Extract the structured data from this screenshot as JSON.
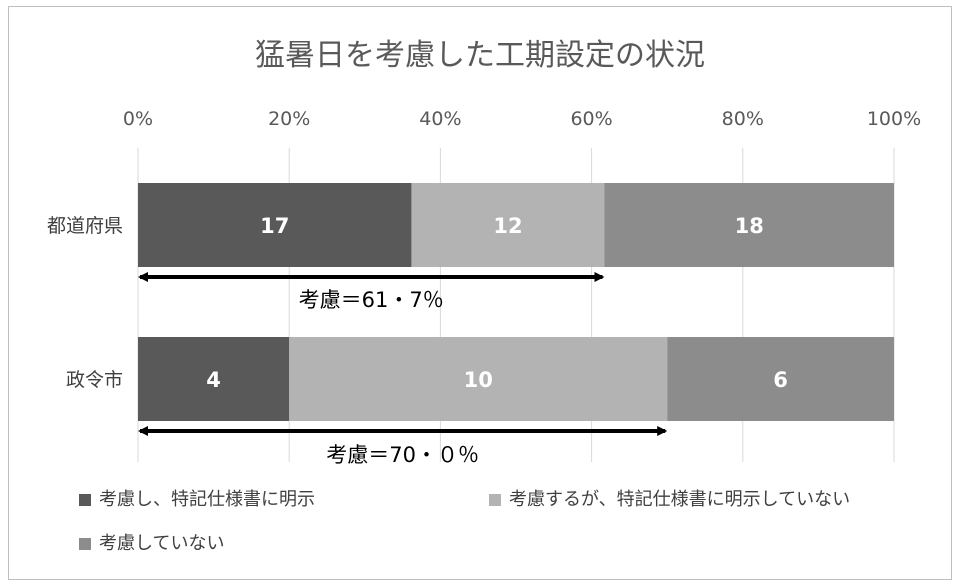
{
  "chart_data": {
    "type": "bar",
    "orientation": "horizontal",
    "stacked": "percent",
    "title": "猛暑日を考慮した工期設定の状況",
    "categories": [
      "都道府県",
      "政令市"
    ],
    "series": [
      {
        "name": "考慮し、特記仕様書に明示",
        "values": [
          17,
          4
        ],
        "color": "#595959"
      },
      {
        "name": "考慮するが、特記仕様書に明示していない",
        "values": [
          12,
          10
        ],
        "color": "#b3b3b3"
      },
      {
        "name": "考慮していない",
        "values": [
          18,
          6
        ],
        "color": "#8c8c8c"
      }
    ],
    "x_ticks": [
      "0%",
      "20%",
      "40%",
      "60%",
      "80%",
      "100%"
    ],
    "xlim": [
      0,
      100
    ],
    "grid": true,
    "legend_position": "bottom",
    "annotations": [
      {
        "category": "都道府県",
        "from": 0,
        "to": 61.7,
        "text": "考慮＝61・7％"
      },
      {
        "category": "政令市",
        "from": 0,
        "to": 70.0,
        "text": "考慮＝70・０％"
      }
    ]
  }
}
